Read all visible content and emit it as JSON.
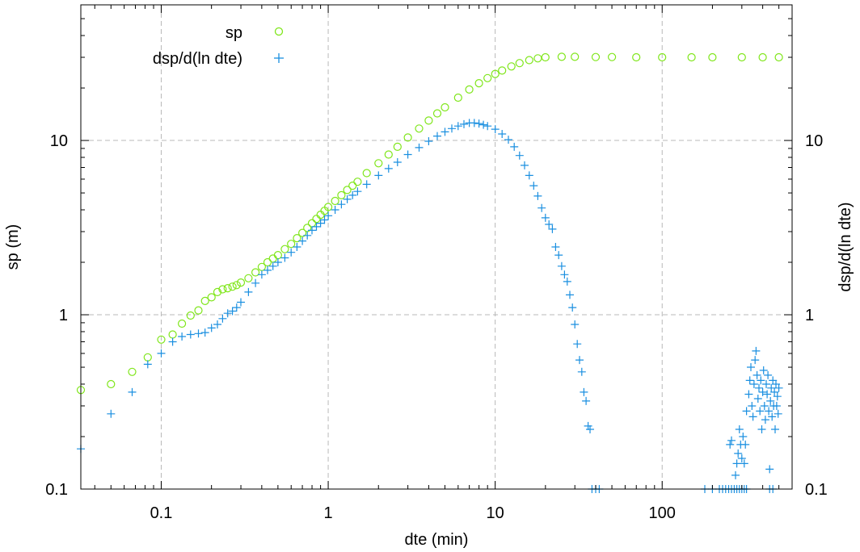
{
  "chart_data": {
    "type": "scatter",
    "title": "",
    "xlabel": "dte (min)",
    "ylabel": "sp (m)",
    "y2label": "dsp/d(ln dte)",
    "x_scale": "log",
    "y_scale": "log",
    "xlim": [
      0.033,
      600
    ],
    "ylim": [
      0.1,
      60
    ],
    "x_ticks": [
      0.1,
      1,
      10,
      100
    ],
    "x_tick_labels": [
      "0.1",
      "1",
      "10",
      "100"
    ],
    "y_ticks": [
      0.1,
      1,
      10
    ],
    "y_tick_labels": [
      "0.1",
      "1",
      "10"
    ],
    "y2_tick_labels": [
      "0.1",
      "1",
      "10"
    ],
    "grid": true,
    "legend_position": "top-left",
    "colors": {
      "sp": "#7fe61a",
      "dsp": "#1a8fe0"
    },
    "series": [
      {
        "name": "sp",
        "marker": "circle",
        "color": "#7fe61a",
        "points": [
          [
            0.033,
            0.37
          ],
          [
            0.05,
            0.4
          ],
          [
            0.067,
            0.47
          ],
          [
            0.083,
            0.57
          ],
          [
            0.1,
            0.72
          ],
          [
            0.117,
            0.77
          ],
          [
            0.133,
            0.89
          ],
          [
            0.15,
            0.99
          ],
          [
            0.167,
            1.06
          ],
          [
            0.183,
            1.2
          ],
          [
            0.2,
            1.26
          ],
          [
            0.217,
            1.35
          ],
          [
            0.233,
            1.4
          ],
          [
            0.25,
            1.42
          ],
          [
            0.267,
            1.45
          ],
          [
            0.283,
            1.48
          ],
          [
            0.3,
            1.53
          ],
          [
            0.333,
            1.62
          ],
          [
            0.367,
            1.75
          ],
          [
            0.4,
            1.88
          ],
          [
            0.433,
            2.0
          ],
          [
            0.467,
            2.1
          ],
          [
            0.5,
            2.2
          ],
          [
            0.55,
            2.38
          ],
          [
            0.6,
            2.55
          ],
          [
            0.65,
            2.75
          ],
          [
            0.7,
            2.95
          ],
          [
            0.75,
            3.15
          ],
          [
            0.8,
            3.35
          ],
          [
            0.85,
            3.55
          ],
          [
            0.9,
            3.75
          ],
          [
            0.95,
            3.95
          ],
          [
            1.0,
            4.15
          ],
          [
            1.1,
            4.5
          ],
          [
            1.2,
            4.85
          ],
          [
            1.3,
            5.2
          ],
          [
            1.4,
            5.5
          ],
          [
            1.5,
            5.8
          ],
          [
            1.7,
            6.5
          ],
          [
            2.0,
            7.4
          ],
          [
            2.3,
            8.3
          ],
          [
            2.6,
            9.2
          ],
          [
            3.0,
            10.4
          ],
          [
            3.5,
            11.7
          ],
          [
            4.0,
            13.0
          ],
          [
            4.5,
            14.3
          ],
          [
            5.0,
            15.5
          ],
          [
            6.0,
            17.6
          ],
          [
            7.0,
            19.6
          ],
          [
            8.0,
            21.3
          ],
          [
            9.0,
            22.8
          ],
          [
            10.0,
            24.1
          ],
          [
            11.0,
            25.2
          ],
          [
            12.5,
            26.6
          ],
          [
            14.0,
            27.8
          ],
          [
            16.0,
            28.9
          ],
          [
            18.0,
            29.6
          ],
          [
            20.0,
            30.0
          ],
          [
            25.0,
            30.2
          ],
          [
            30.0,
            30.2
          ],
          [
            40.0,
            30.1
          ],
          [
            50.0,
            30.1
          ],
          [
            70.0,
            30.0
          ],
          [
            100.0,
            30.0
          ],
          [
            150.0,
            30.0
          ],
          [
            200.0,
            30.0
          ],
          [
            300.0,
            30.0
          ],
          [
            400.0,
            30.0
          ],
          [
            500.0,
            30.0
          ]
        ]
      },
      {
        "name": "dsp/d(ln dte)",
        "marker": "plus",
        "color": "#1a8fe0",
        "points": [
          [
            0.033,
            0.17
          ],
          [
            0.05,
            0.27
          ],
          [
            0.067,
            0.36
          ],
          [
            0.083,
            0.52
          ],
          [
            0.1,
            0.6
          ],
          [
            0.117,
            0.7
          ],
          [
            0.133,
            0.75
          ],
          [
            0.15,
            0.77
          ],
          [
            0.167,
            0.78
          ],
          [
            0.183,
            0.79
          ],
          [
            0.2,
            0.84
          ],
          [
            0.217,
            0.88
          ],
          [
            0.233,
            0.95
          ],
          [
            0.25,
            1.02
          ],
          [
            0.267,
            1.05
          ],
          [
            0.283,
            1.1
          ],
          [
            0.3,
            1.18
          ],
          [
            0.333,
            1.35
          ],
          [
            0.367,
            1.52
          ],
          [
            0.4,
            1.7
          ],
          [
            0.433,
            1.8
          ],
          [
            0.467,
            1.9
          ],
          [
            0.5,
            2.0
          ],
          [
            0.55,
            2.12
          ],
          [
            0.6,
            2.28
          ],
          [
            0.65,
            2.45
          ],
          [
            0.7,
            2.65
          ],
          [
            0.75,
            2.85
          ],
          [
            0.8,
            3.05
          ],
          [
            0.85,
            3.2
          ],
          [
            0.9,
            3.35
          ],
          [
            0.95,
            3.5
          ],
          [
            1.0,
            3.7
          ],
          [
            1.1,
            4.0
          ],
          [
            1.2,
            4.3
          ],
          [
            1.3,
            4.6
          ],
          [
            1.4,
            4.85
          ],
          [
            1.5,
            5.1
          ],
          [
            1.7,
            5.6
          ],
          [
            2.0,
            6.3
          ],
          [
            2.3,
            6.9
          ],
          [
            2.6,
            7.5
          ],
          [
            3.0,
            8.3
          ],
          [
            3.5,
            9.1
          ],
          [
            4.0,
            9.9
          ],
          [
            4.5,
            10.6
          ],
          [
            5.0,
            11.2
          ],
          [
            5.5,
            11.7
          ],
          [
            6.0,
            12.1
          ],
          [
            6.5,
            12.4
          ],
          [
            7.0,
            12.6
          ],
          [
            7.5,
            12.6
          ],
          [
            8.0,
            12.5
          ],
          [
            8.5,
            12.3
          ],
          [
            9.0,
            12.1
          ],
          [
            10.0,
            11.6
          ],
          [
            11.0,
            10.9
          ],
          [
            12.0,
            10.1
          ],
          [
            13.0,
            9.2
          ],
          [
            14.0,
            8.2
          ],
          [
            15.0,
            7.2
          ],
          [
            16.0,
            6.3
          ],
          [
            17.0,
            5.5
          ],
          [
            18.0,
            4.8
          ],
          [
            19.0,
            4.1
          ],
          [
            20.0,
            3.6
          ],
          [
            21.0,
            3.3
          ],
          [
            22.0,
            3.1
          ],
          [
            23.0,
            2.45
          ],
          [
            24.0,
            2.2
          ],
          [
            25.0,
            1.9
          ],
          [
            26.0,
            1.7
          ],
          [
            27.0,
            1.55
          ],
          [
            28.0,
            1.3
          ],
          [
            29.0,
            1.1
          ],
          [
            30.0,
            0.88
          ],
          [
            31.0,
            0.68
          ],
          [
            32.0,
            0.55
          ],
          [
            33.0,
            0.47
          ],
          [
            34.0,
            0.36
          ],
          [
            35.0,
            0.32
          ],
          [
            36.0,
            0.23
          ],
          [
            37.0,
            0.22
          ],
          [
            38.0,
            0.1
          ],
          [
            40.0,
            0.1
          ],
          [
            42.0,
            0.1
          ],
          [
            180.0,
            0.1
          ],
          [
            200.0,
            0.1
          ],
          [
            220.0,
            0.1
          ],
          [
            230.0,
            0.1
          ],
          [
            240.0,
            0.1
          ],
          [
            250.0,
            0.1
          ],
          [
            260.0,
            0.1
          ],
          [
            270.0,
            0.1
          ],
          [
            280.0,
            0.1
          ],
          [
            290.0,
            0.1
          ],
          [
            300.0,
            0.1
          ],
          [
            310.0,
            0.1
          ],
          [
            320.0,
            0.1
          ],
          [
            440.0,
            0.1
          ],
          [
            460.0,
            0.1
          ],
          [
            260.0,
            0.19
          ],
          [
            255.0,
            0.18
          ],
          [
            275.0,
            0.12
          ],
          [
            280.0,
            0.14
          ],
          [
            285.0,
            0.16
          ],
          [
            290.0,
            0.22
          ],
          [
            295.0,
            0.18
          ],
          [
            300.0,
            0.15
          ],
          [
            305.0,
            0.2
          ],
          [
            310.0,
            0.14
          ],
          [
            315.0,
            0.18
          ],
          [
            320.0,
            0.28
          ],
          [
            330.0,
            0.35
          ],
          [
            335.0,
            0.42
          ],
          [
            340.0,
            0.5
          ],
          [
            345.0,
            0.3
          ],
          [
            350.0,
            0.26
          ],
          [
            355.0,
            0.4
          ],
          [
            360.0,
            0.55
          ],
          [
            365.0,
            0.62
          ],
          [
            370.0,
            0.45
          ],
          [
            375.0,
            0.33
          ],
          [
            380.0,
            0.38
          ],
          [
            385.0,
            0.28
          ],
          [
            390.0,
            0.42
          ],
          [
            395.0,
            0.22
          ],
          [
            400.0,
            0.36
          ],
          [
            405.0,
            0.48
          ],
          [
            410.0,
            0.3
          ],
          [
            415.0,
            0.25
          ],
          [
            420.0,
            0.4
          ],
          [
            425.0,
            0.35
          ],
          [
            430.0,
            0.45
          ],
          [
            435.0,
            0.28
          ],
          [
            440.0,
            0.13
          ],
          [
            445.0,
            0.32
          ],
          [
            450.0,
            0.38
          ],
          [
            455.0,
            0.26
          ],
          [
            460.0,
            0.42
          ],
          [
            465.0,
            0.3
          ],
          [
            470.0,
            0.36
          ],
          [
            475.0,
            0.22
          ],
          [
            480.0,
            0.4
          ],
          [
            485.0,
            0.3
          ],
          [
            490.0,
            0.34
          ],
          [
            495.0,
            0.27
          ],
          [
            500.0,
            0.38
          ]
        ]
      }
    ]
  }
}
